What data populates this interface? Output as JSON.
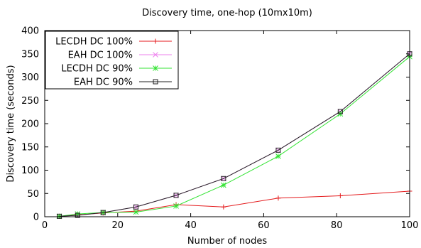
{
  "chart_data": {
    "type": "line",
    "title": "Discovery time, one-hop (10mx10m)",
    "xlabel": "Number of nodes",
    "ylabel": "Discovery time (seconds)",
    "xlim": [
      0,
      100
    ],
    "ylim": [
      0,
      400
    ],
    "xticks": [
      0,
      20,
      40,
      60,
      80,
      100
    ],
    "yticks": [
      0,
      50,
      100,
      150,
      200,
      250,
      300,
      350,
      400
    ],
    "grid": false,
    "legend_position": "top-left",
    "x": [
      4,
      9,
      16,
      25,
      36,
      49,
      64,
      81,
      100
    ],
    "series": [
      {
        "name": "LECDH DC 100%",
        "color": "#e41a1c",
        "marker": "plus",
        "values": [
          1,
          4,
          8,
          12,
          26,
          21,
          40,
          45,
          55
        ]
      },
      {
        "name": "EAH DC 100%",
        "color": "#ee82ee",
        "marker": "cross",
        "values": [
          1,
          3,
          9,
          21,
          46,
          82,
          143,
          226,
          350
        ]
      },
      {
        "name": "LECDH DC 90%",
        "color": "#33e333",
        "marker": "star",
        "values": [
          1,
          6,
          9,
          10,
          23,
          68,
          130,
          221,
          344
        ]
      },
      {
        "name": "EAH DC 90%",
        "color": "#222222",
        "marker": "square",
        "values": [
          1,
          3,
          9,
          21,
          46,
          82,
          143,
          226,
          350
        ]
      }
    ]
  }
}
